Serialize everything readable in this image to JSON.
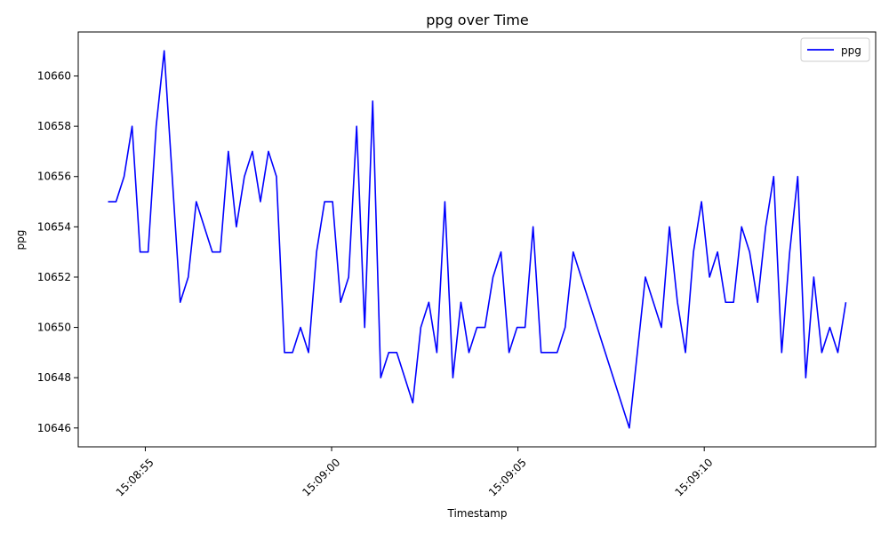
{
  "chart_data": {
    "type": "line",
    "title": "ppg over Time",
    "xlabel": "Timestamp",
    "ylabel": "ppg",
    "x_axis_type": "time",
    "x_start": "15:08:54.0",
    "x_end": "15:09:13.8",
    "xlim": [
      "15:08:53.2",
      "15:09:14.6"
    ],
    "ylim": [
      10645.25,
      10661.75
    ],
    "x_ticks": [
      "15:08:55",
      "15:09:00",
      "15:09:05",
      "15:09:10"
    ],
    "y_ticks": [
      10646,
      10648,
      10650,
      10652,
      10654,
      10656,
      10658,
      10660
    ],
    "grid": false,
    "legend": {
      "position": "top-right",
      "entries": [
        "ppg"
      ]
    },
    "series": [
      {
        "name": "ppg",
        "color": "#0000ff",
        "values": [
          10655,
          10655,
          10656,
          10658,
          10653,
          10653,
          10658,
          10661,
          10656,
          10651,
          10652,
          10655,
          10654,
          10653,
          10653,
          10657,
          10654,
          10656,
          10657,
          10655,
          10657,
          10656,
          10649,
          10649,
          10650,
          10649,
          10653,
          10655,
          10655,
          10651,
          10652,
          10658,
          10650,
          10659,
          10648,
          10649,
          10649,
          10648,
          10647,
          10650,
          10651,
          10649,
          10655,
          10648,
          10651,
          10649,
          10650,
          10650,
          10652,
          10653,
          10649,
          10650,
          10650,
          10654,
          10649,
          10649,
          10649,
          10650,
          10653,
          10652,
          10651,
          10650,
          10649,
          10648,
          10647,
          10646,
          10649,
          10652,
          10651,
          10650,
          10654,
          10651,
          10649,
          10653,
          10655,
          10652,
          10653,
          10651,
          10651,
          10654,
          10653,
          10651,
          10654,
          10656,
          10649,
          10653,
          10656,
          10648,
          10652,
          10649,
          10650,
          10649,
          10651
        ]
      }
    ]
  }
}
